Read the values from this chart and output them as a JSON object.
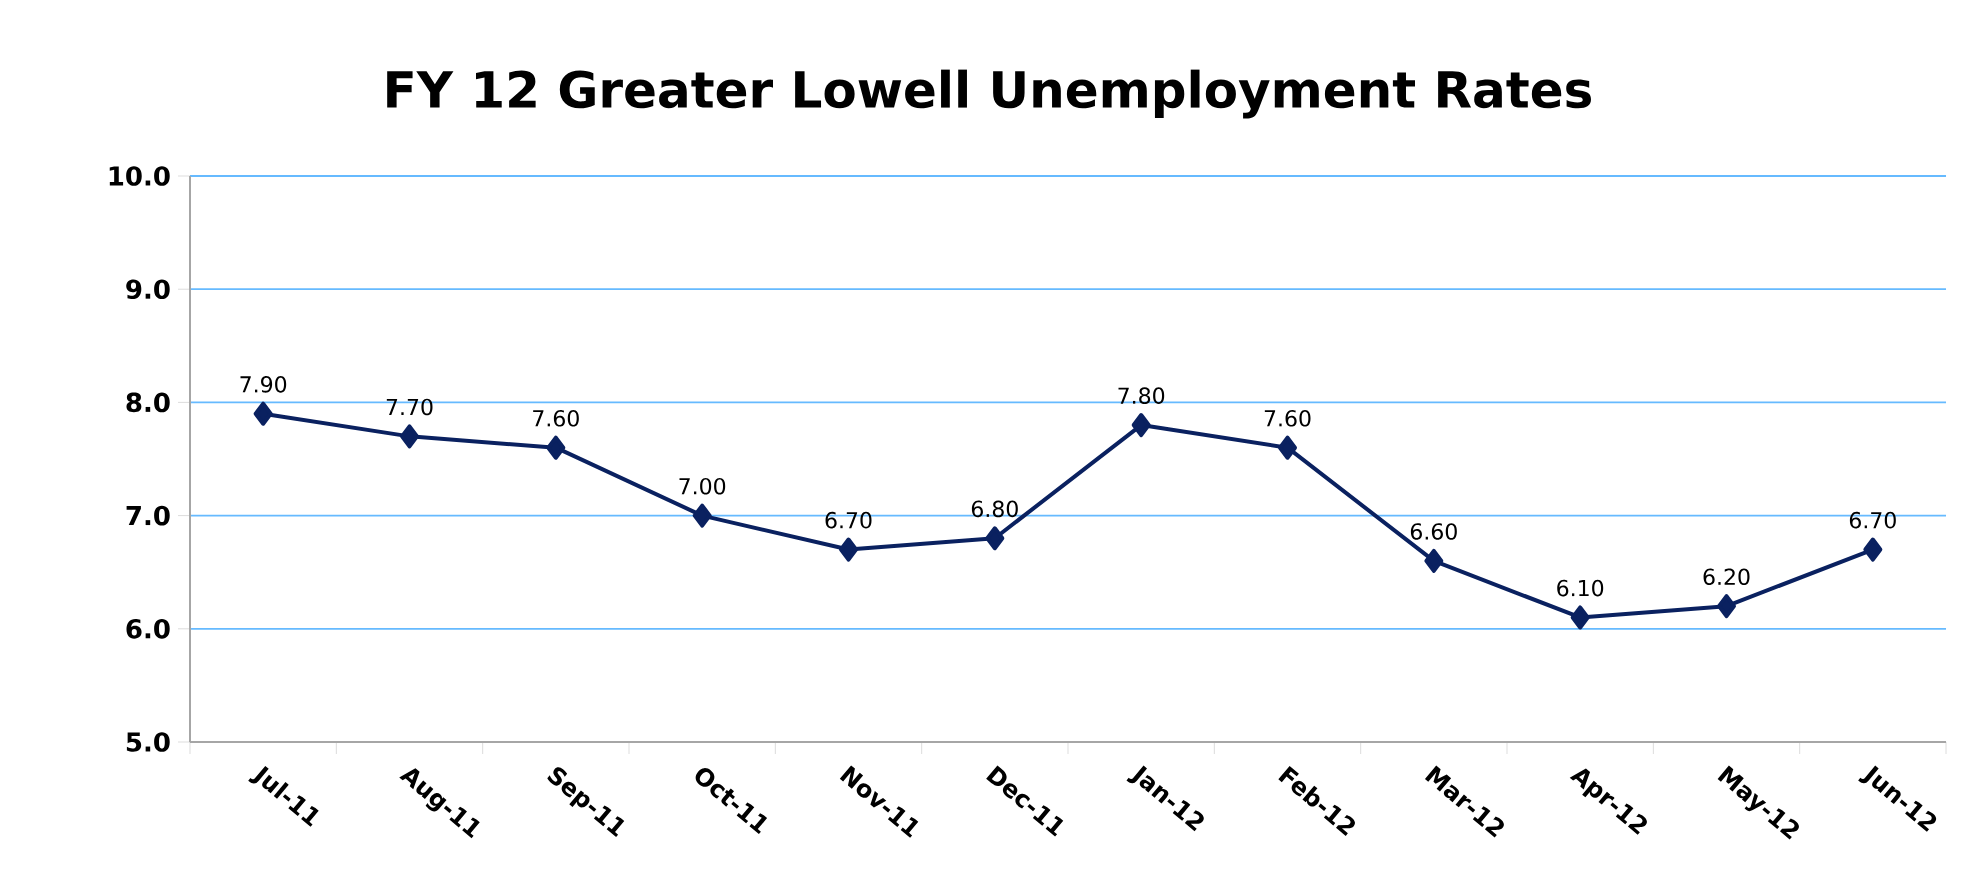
{
  "chart_data": {
    "type": "line",
    "title": "FY 12 Greater Lowell Unemployment Rates",
    "categories": [
      "Jul-11",
      "Aug-11",
      "Sep-11",
      "Oct-11",
      "Nov-11",
      "Dec-11",
      "Jan-12",
      "Feb-12",
      "Mar-12",
      "Apr-12",
      "May-12",
      "Jun-12"
    ],
    "values": [
      7.9,
      7.7,
      7.6,
      7.0,
      6.7,
      6.8,
      7.8,
      7.6,
      6.6,
      6.1,
      6.2,
      6.7
    ],
    "value_labels": [
      "7.90",
      "7.70",
      "7.60",
      "7.00",
      "6.70",
      "6.80",
      "7.80",
      "7.60",
      "6.60",
      "6.10",
      "6.20",
      "6.70"
    ],
    "color": "#0a2160",
    "ylim": [
      5,
      10
    ],
    "yticks": [
      {
        "value": 5,
        "label": "5.0"
      },
      {
        "value": 6,
        "label": "6.0"
      },
      {
        "value": 7,
        "label": "7.0"
      },
      {
        "value": 8,
        "label": "8.0"
      },
      {
        "value": 9,
        "label": "9.0"
      },
      {
        "value": 10,
        "label": "10.0"
      }
    ],
    "grid": "y",
    "marker": "diamond",
    "line_style": "solid"
  }
}
